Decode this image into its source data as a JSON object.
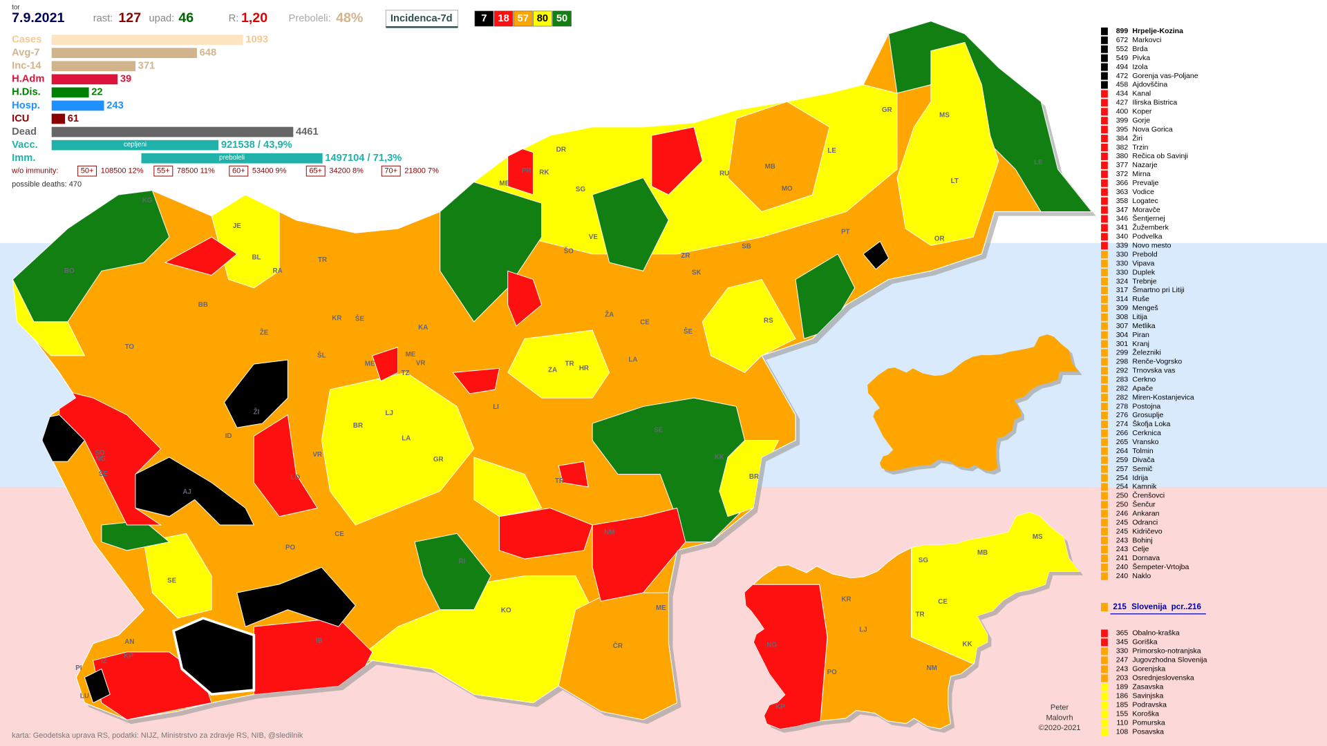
{
  "header": {
    "day": "tor",
    "date": "7.9.2021",
    "rast_label": "rast:",
    "rast": 127,
    "upad_label": "upad:",
    "upad": 46,
    "r_label": "R:",
    "r": "1,20",
    "preboleli_label": "Preboleli:",
    "preboleli": "48%",
    "incidence_title": "Incidenca-7d",
    "class_counts": [
      {
        "count": 7,
        "color": "#000000",
        "text_color": "#ffffff"
      },
      {
        "count": 18,
        "color": "#ff1010",
        "text_color": "#ffffff"
      },
      {
        "count": 57,
        "color": "#ffa500",
        "text_color": "#ffffff"
      },
      {
        "count": 80,
        "color": "#ffff00",
        "text_color": "#000000"
      },
      {
        "count": 50,
        "color": "#117f11",
        "text_color": "#ffffff"
      }
    ]
  },
  "stats": [
    {
      "name": "Cases",
      "value": 1093,
      "color": "#fde4c0",
      "label_color": "#f3c995"
    },
    {
      "name": "Avg-7",
      "value": 648,
      "color": "#d2b48c",
      "label_color": "#d2b48c"
    },
    {
      "name": "Inc-14",
      "value": 371,
      "color": "#d2b48c",
      "label_color": "#d2b48c"
    },
    {
      "name": "H.Adm",
      "value": 39,
      "color": "#dc143c",
      "label_color": "#dc143c"
    },
    {
      "name": "H.Dis.",
      "value": 22,
      "color": "#008000",
      "label_color": "#008000"
    },
    {
      "name": "Hosp.",
      "value": 243,
      "color": "#1e90ff",
      "label_color": "#1e90ff"
    },
    {
      "name": "ICU",
      "value": 61,
      "color": "#8b0000",
      "label_color": "#8b0000"
    },
    {
      "name": "Dead",
      "value": 4461,
      "color": "#666666",
      "label_color": "#666666"
    },
    {
      "name": "Vacc.",
      "value": 921538,
      "value_label": "921538 / 43,9%",
      "note": "cepljeni",
      "color": "#20b2aa",
      "label_color": "#20b2aa"
    },
    {
      "name": "Imm.",
      "value": 1497104,
      "value_label": "1497104 / 71,3%",
      "note": "preboleli",
      "color": "#20b2aa",
      "label_color": "#20b2aa"
    }
  ],
  "immunity": {
    "title": "w/o immunity:",
    "groups": [
      {
        "age": "50+",
        "text": "108500 12%"
      },
      {
        "age": "55+",
        "text": "78500 11%"
      },
      {
        "age": "60+",
        "text": "53400 9%"
      },
      {
        "age": "65+",
        "text": "34200 8%"
      },
      {
        "age": "70+",
        "text": "21800 7%"
      }
    ],
    "deaths": "possible deaths: 470"
  },
  "municipalities": [
    {
      "value": 899,
      "name": "Hrpelje-Kozina",
      "color": "#000000"
    },
    {
      "value": 672,
      "name": "Markovci",
      "color": "#000000"
    },
    {
      "value": 552,
      "name": "Brda",
      "color": "#000000"
    },
    {
      "value": 549,
      "name": "Pivka",
      "color": "#000000"
    },
    {
      "value": 494,
      "name": "Izola",
      "color": "#000000"
    },
    {
      "value": 472,
      "name": "Gorenja vas-Poljane",
      "color": "#000000"
    },
    {
      "value": 458,
      "name": "Ajdovščina",
      "color": "#000000"
    },
    {
      "value": 434,
      "name": "Kanal",
      "color": "#ff1010"
    },
    {
      "value": 427,
      "name": "Ilirska Bistrica",
      "color": "#ff1010"
    },
    {
      "value": 400,
      "name": "Koper",
      "color": "#ff1010"
    },
    {
      "value": 399,
      "name": "Gorje",
      "color": "#ff1010"
    },
    {
      "value": 395,
      "name": "Nova Gorica",
      "color": "#ff1010"
    },
    {
      "value": 384,
      "name": "Žiri",
      "color": "#ff1010"
    },
    {
      "value": 382,
      "name": "Trzin",
      "color": "#ff1010"
    },
    {
      "value": 380,
      "name": "Rečica ob Savinji",
      "color": "#ff1010"
    },
    {
      "value": 377,
      "name": "Nazarje",
      "color": "#ff1010"
    },
    {
      "value": 372,
      "name": "Mirna",
      "color": "#ff1010"
    },
    {
      "value": 366,
      "name": "Prevalje",
      "color": "#ff1010"
    },
    {
      "value": 363,
      "name": "Vodice",
      "color": "#ff1010"
    },
    {
      "value": 358,
      "name": "Logatec",
      "color": "#ff1010"
    },
    {
      "value": 347,
      "name": "Moravče",
      "color": "#ff1010"
    },
    {
      "value": 346,
      "name": "Šentjernej",
      "color": "#ff1010"
    },
    {
      "value": 341,
      "name": "Žužemberk",
      "color": "#ff1010"
    },
    {
      "value": 340,
      "name": "Podvelka",
      "color": "#ff1010"
    },
    {
      "value": 339,
      "name": "Novo mesto",
      "color": "#ff1010"
    },
    {
      "value": 330,
      "name": "Prebold",
      "color": "#ffa500"
    },
    {
      "value": 330,
      "name": "Vipava",
      "color": "#ffa500"
    },
    {
      "value": 330,
      "name": "Duplek",
      "color": "#ffa500"
    },
    {
      "value": 324,
      "name": "Trebnje",
      "color": "#ffa500"
    },
    {
      "value": 317,
      "name": "Šmartno pri Litiji",
      "color": "#ffa500"
    },
    {
      "value": 314,
      "name": "Ruše",
      "color": "#ffa500"
    },
    {
      "value": 309,
      "name": "Mengeš",
      "color": "#ffa500"
    },
    {
      "value": 308,
      "name": "Litija",
      "color": "#ffa500"
    },
    {
      "value": 307,
      "name": "Metlika",
      "color": "#ffa500"
    },
    {
      "value": 304,
      "name": "Piran",
      "color": "#ffa500"
    },
    {
      "value": 301,
      "name": "Kranj",
      "color": "#ffa500"
    },
    {
      "value": 299,
      "name": "Železniki",
      "color": "#ffa500"
    },
    {
      "value": 298,
      "name": "Renče-Vogrsko",
      "color": "#ffa500"
    },
    {
      "value": 292,
      "name": "Trnovska vas",
      "color": "#ffa500"
    },
    {
      "value": 283,
      "name": "Cerkno",
      "color": "#ffa500"
    },
    {
      "value": 282,
      "name": "Apače",
      "color": "#ffa500"
    },
    {
      "value": 282,
      "name": "Miren-Kostanjevica",
      "color": "#ffa500"
    },
    {
      "value": 278,
      "name": "Postojna",
      "color": "#ffa500"
    },
    {
      "value": 276,
      "name": "Grosuplje",
      "color": "#ffa500"
    },
    {
      "value": 274,
      "name": "Škofja Loka",
      "color": "#ffa500"
    },
    {
      "value": 266,
      "name": "Cerknica",
      "color": "#ffa500"
    },
    {
      "value": 265,
      "name": "Vransko",
      "color": "#ffa500"
    },
    {
      "value": 264,
      "name": "Tolmin",
      "color": "#ffa500"
    },
    {
      "value": 259,
      "name": "Divača",
      "color": "#ffa500"
    },
    {
      "value": 257,
      "name": "Semič",
      "color": "#ffa500"
    },
    {
      "value": 254,
      "name": "Idrija",
      "color": "#ffa500"
    },
    {
      "value": 254,
      "name": "Kamnik",
      "color": "#ffa500"
    },
    {
      "value": 250,
      "name": "Črenšovci",
      "color": "#ffa500"
    },
    {
      "value": 250,
      "name": "Šenčur",
      "color": "#ffa500"
    },
    {
      "value": 246,
      "name": "Ankaran",
      "color": "#ffa500"
    },
    {
      "value": 245,
      "name": "Odranci",
      "color": "#ffa500"
    },
    {
      "value": 245,
      "name": "Kidričevo",
      "color": "#ffa500"
    },
    {
      "value": 243,
      "name": "Bohinj",
      "color": "#ffa500"
    },
    {
      "value": 243,
      "name": "Celje",
      "color": "#ffa500"
    },
    {
      "value": 241,
      "name": "Dornava",
      "color": "#ffa500"
    },
    {
      "value": 240,
      "name": "Šempeter-Vrtojba",
      "color": "#ffa500"
    },
    {
      "value": 240,
      "name": "Naklo",
      "color": "#ffa500"
    }
  ],
  "slovenia": {
    "value": 215,
    "name": "Slovenija",
    "note": "pcr..216",
    "color": "#ffa500"
  },
  "regions": [
    {
      "value": 365,
      "name": "Obalno-kraška",
      "color": "#ff1010"
    },
    {
      "value": 345,
      "name": "Goriška",
      "color": "#ff1010"
    },
    {
      "value": 330,
      "name": "Primorsko-notranjska",
      "color": "#ffa500"
    },
    {
      "value": 247,
      "name": "Jugovzhodna Slovenija",
      "color": "#ffa500"
    },
    {
      "value": 243,
      "name": "Gorenjska",
      "color": "#ffa500"
    },
    {
      "value": 203,
      "name": "Osrednjeslovenska",
      "color": "#ffa500"
    },
    {
      "value": 189,
      "name": "Zasavska",
      "color": "#ffff00"
    },
    {
      "value": 186,
      "name": "Savinjska",
      "color": "#ffff00"
    },
    {
      "value": 185,
      "name": "Podravska",
      "color": "#ffff00"
    },
    {
      "value": 155,
      "name": "Koroška",
      "color": "#ffff00"
    },
    {
      "value": 110,
      "name": "Pomurska",
      "color": "#ffff00"
    },
    {
      "value": 108,
      "name": "Posavska",
      "color": "#ffff00"
    }
  ],
  "map_labels": [
    "BO",
    "KG",
    "JE",
    "BL",
    "RA",
    "TR",
    "BB",
    "TO",
    "ŽE",
    "KR",
    "ŠE",
    "ŠL",
    "KA",
    "ME",
    "ŽI",
    "ID",
    "VR",
    "LO",
    "BR",
    "LJ",
    "LA",
    "GR",
    "SO",
    "NG",
    "ŠE",
    "AJ",
    "PO",
    "CE",
    "SE",
    "AN",
    "KP",
    "IZ",
    "PI",
    "LU",
    "IB",
    "RI",
    "KO",
    "ME",
    "ČR",
    "NM",
    "TR",
    "KK",
    "BR",
    "SE",
    "LI",
    "LA",
    "ZA",
    "TR",
    "HR",
    "ŽA",
    "CE",
    "ŠE",
    "RS",
    "SB",
    "ZR",
    "SK",
    "VE",
    "ŠO",
    "SG",
    "RK",
    "DR",
    "PR",
    "ME",
    "RU",
    "MB",
    "MO",
    "LE",
    "GR",
    "MS",
    "LT",
    "LE",
    "PT",
    "OR",
    "TZ",
    "VR",
    "ME"
  ],
  "region_labels": [
    "SG",
    "MB",
    "MS",
    "KR",
    "CE",
    "TR",
    "LJ",
    "NG",
    "KK",
    "PO",
    "NM",
    "KP"
  ],
  "footer": {
    "source": "karta: Geodetska uprava RS,  podatki: NIJZ, Ministrstvo za zdravje RS, NIB, @sledilnik",
    "author": [
      "Peter",
      "Malovrh",
      "©2020-2021"
    ]
  }
}
